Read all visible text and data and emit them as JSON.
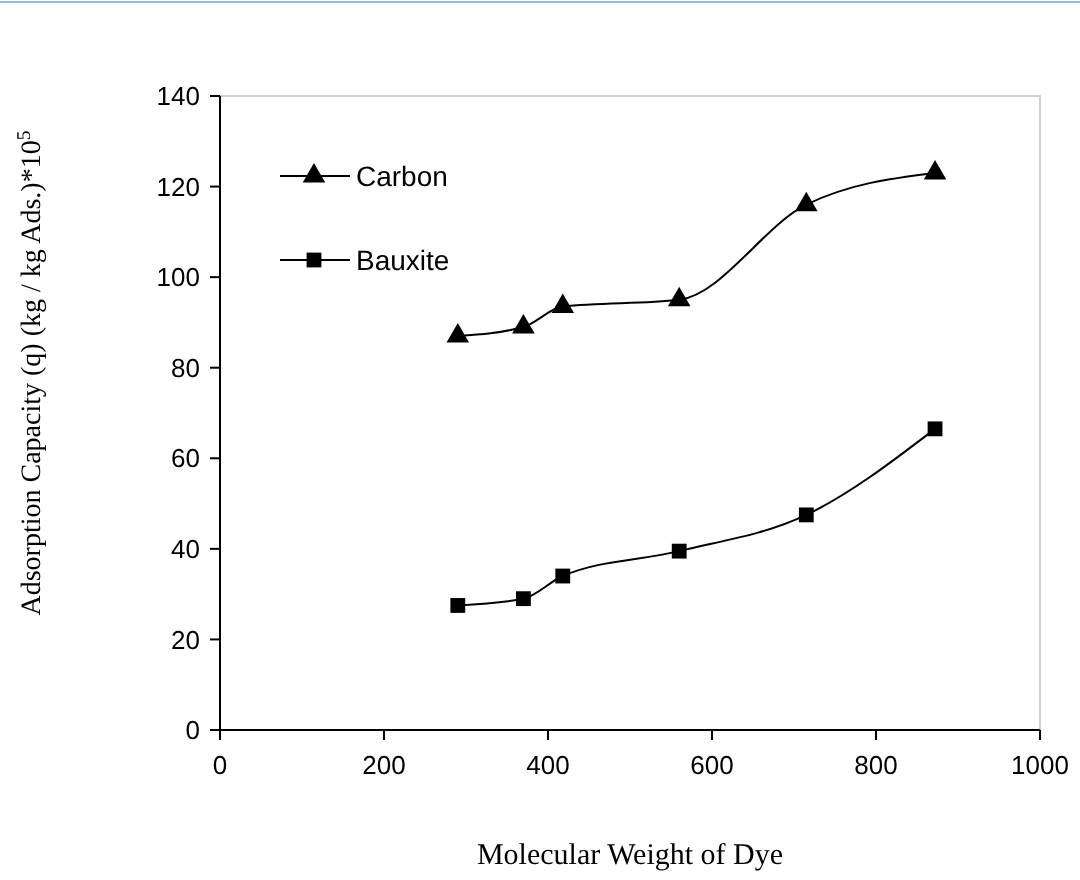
{
  "chart_data": {
    "type": "line",
    "xlabel": "Molecular Weight of Dye",
    "ylabel": "Adsorption Capacity (q) (kg / kg Ads.)*10$^{5}$",
    "x": [
      290,
      370,
      418,
      560,
      715,
      872
    ],
    "series": [
      {
        "name": "Carbon",
        "color": "#000000",
        "marker": "triangle",
        "values": [
          87,
          89,
          93.5,
          95,
          116,
          123
        ]
      },
      {
        "name": "Bauxite",
        "color": "#000000",
        "marker": "square",
        "values": [
          27.5,
          29,
          34,
          39.5,
          47.5,
          66.5
        ]
      }
    ],
    "xlim": [
      0,
      1000
    ],
    "xticks": [
      0,
      200,
      400,
      600,
      800,
      1000
    ],
    "ylim": [
      0,
      140
    ],
    "yticks": [
      0,
      20,
      40,
      60,
      80,
      100,
      120,
      140
    ],
    "legend": "top left",
    "grid": false
  }
}
